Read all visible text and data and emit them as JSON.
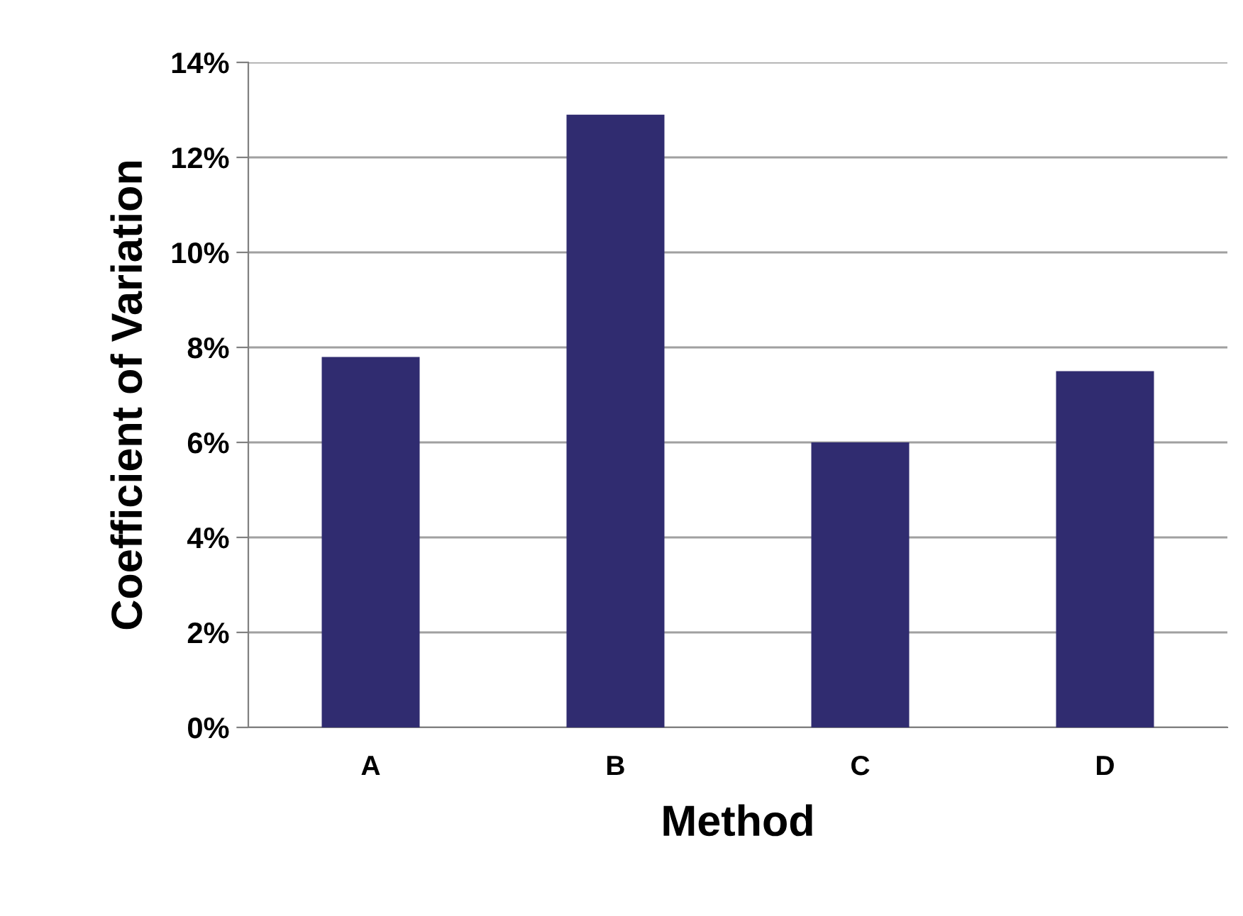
{
  "chart_data": {
    "type": "bar",
    "xlabel": "Method",
    "ylabel": "Coefficient of Variation",
    "categories": [
      "A",
      "B",
      "C",
      "D"
    ],
    "values": [
      7.8,
      12.9,
      6.0,
      7.5
    ],
    "color": "#302c70",
    "ylim": [
      0,
      14
    ],
    "yticks": [
      {
        "value": 0,
        "label": "0%"
      },
      {
        "value": 2,
        "label": "2%"
      },
      {
        "value": 4,
        "label": "4%"
      },
      {
        "value": 6,
        "label": "6%"
      },
      {
        "value": 8,
        "label": "8%"
      },
      {
        "value": 10,
        "label": "10%"
      },
      {
        "value": 12,
        "label": "12%"
      },
      {
        "value": 14,
        "label": "14%"
      }
    ],
    "grid": "y"
  }
}
